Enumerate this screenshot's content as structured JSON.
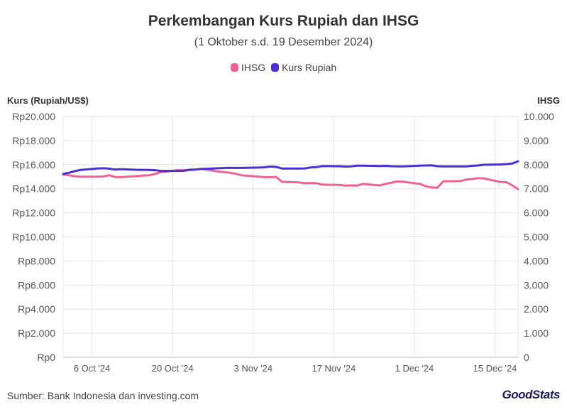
{
  "chart_data": {
    "type": "line",
    "title": "Perkembangan Kurs Rupiah dan IHSG",
    "subtitle": "(1 Oktober s.d. 19 Desember 2024)",
    "y_left_label": "Kurs (Rupiah/US$)",
    "y_right_label": "IHSG",
    "y_left_ticks": [
      "Rp0",
      "Rp2.000",
      "Rp4.000",
      "Rp6.000",
      "Rp8.000",
      "Rp10.000",
      "Rp12.000",
      "Rp14.000",
      "Rp16.000",
      "Rp18.000",
      "Rp20.000"
    ],
    "y_right_ticks": [
      "0",
      "1.000",
      "2.000",
      "3.000",
      "4.000",
      "5.000",
      "6.000",
      "7.000",
      "8.000",
      "9.000",
      "10.000"
    ],
    "ylim_left": [
      0,
      20000
    ],
    "ylim_right": [
      0,
      10000
    ],
    "x_ticks": [
      {
        "date": "2024-10-06",
        "label": "6 Oct '24"
      },
      {
        "date": "2024-10-20",
        "label": "20 Oct '24"
      },
      {
        "date": "2024-11-03",
        "label": "3 Nov '24"
      },
      {
        "date": "2024-11-17",
        "label": "17 Nov '24"
      },
      {
        "date": "2024-12-01",
        "label": "1 Dec '24"
      },
      {
        "date": "2024-12-15",
        "label": "15 Dec '24"
      }
    ],
    "xlim": [
      "2024-10-01",
      "2024-12-19"
    ],
    "legend_position": "top-center",
    "grid": true,
    "series": [
      {
        "name": "IHSG",
        "axis": "right",
        "color": "#f06292",
        "points": [
          [
            "2024-10-01",
            7590
          ],
          [
            "2024-10-02",
            7560
          ],
          [
            "2024-10-03",
            7520
          ],
          [
            "2024-10-04",
            7500
          ],
          [
            "2024-10-07",
            7500
          ],
          [
            "2024-10-08",
            7510
          ],
          [
            "2024-10-09",
            7560
          ],
          [
            "2024-10-10",
            7490
          ],
          [
            "2024-10-11",
            7480
          ],
          [
            "2024-10-14",
            7530
          ],
          [
            "2024-10-15",
            7550
          ],
          [
            "2024-10-16",
            7560
          ],
          [
            "2024-10-17",
            7620
          ],
          [
            "2024-10-18",
            7690
          ],
          [
            "2024-10-21",
            7770
          ],
          [
            "2024-10-22",
            7770
          ],
          [
            "2024-10-23",
            7780
          ],
          [
            "2024-10-24",
            7790
          ],
          [
            "2024-10-25",
            7830
          ],
          [
            "2024-10-28",
            7710
          ],
          [
            "2024-10-29",
            7690
          ],
          [
            "2024-10-30",
            7660
          ],
          [
            "2024-10-31",
            7620
          ],
          [
            "2024-11-01",
            7560
          ],
          [
            "2024-11-04",
            7500
          ],
          [
            "2024-11-05",
            7480
          ],
          [
            "2024-11-06",
            7480
          ],
          [
            "2024-11-07",
            7490
          ],
          [
            "2024-11-08",
            7290
          ],
          [
            "2024-11-11",
            7260
          ],
          [
            "2024-11-12",
            7230
          ],
          [
            "2024-11-13",
            7240
          ],
          [
            "2024-11-14",
            7230
          ],
          [
            "2024-11-15",
            7170
          ],
          [
            "2024-11-18",
            7160
          ],
          [
            "2024-11-19",
            7130
          ],
          [
            "2024-11-20",
            7140
          ],
          [
            "2024-11-21",
            7130
          ],
          [
            "2024-11-22",
            7200
          ],
          [
            "2024-11-25",
            7140
          ],
          [
            "2024-11-26",
            7200
          ],
          [
            "2024-11-28",
            7300
          ],
          [
            "2024-11-29",
            7290
          ],
          [
            "2024-12-02",
            7200
          ],
          [
            "2024-12-03",
            7100
          ],
          [
            "2024-12-04",
            7060
          ],
          [
            "2024-12-05",
            7040
          ],
          [
            "2024-12-06",
            7310
          ],
          [
            "2024-12-09",
            7320
          ],
          [
            "2024-12-10",
            7380
          ],
          [
            "2024-12-11",
            7400
          ],
          [
            "2024-12-12",
            7440
          ],
          [
            "2024-12-13",
            7430
          ],
          [
            "2024-12-16",
            7280
          ],
          [
            "2024-12-17",
            7270
          ],
          [
            "2024-12-18",
            7140
          ],
          [
            "2024-12-19",
            6980
          ]
        ]
      },
      {
        "name": "Kurs Rupiah",
        "axis": "left",
        "color": "#4a2fd3",
        "points": [
          [
            "2024-10-01",
            15230
          ],
          [
            "2024-10-02",
            15330
          ],
          [
            "2024-10-03",
            15460
          ],
          [
            "2024-10-04",
            15560
          ],
          [
            "2024-10-07",
            15690
          ],
          [
            "2024-10-08",
            15700
          ],
          [
            "2024-10-09",
            15670
          ],
          [
            "2024-10-10",
            15590
          ],
          [
            "2024-10-11",
            15630
          ],
          [
            "2024-10-14",
            15570
          ],
          [
            "2024-10-15",
            15570
          ],
          [
            "2024-10-16",
            15560
          ],
          [
            "2024-10-17",
            15540
          ],
          [
            "2024-10-18",
            15480
          ],
          [
            "2024-10-21",
            15480
          ],
          [
            "2024-10-22",
            15490
          ],
          [
            "2024-10-23",
            15580
          ],
          [
            "2024-10-24",
            15600
          ],
          [
            "2024-10-25",
            15640
          ],
          [
            "2024-10-28",
            15700
          ],
          [
            "2024-10-29",
            15720
          ],
          [
            "2024-10-30",
            15740
          ],
          [
            "2024-10-31",
            15730
          ],
          [
            "2024-11-01",
            15730
          ],
          [
            "2024-11-04",
            15760
          ],
          [
            "2024-11-05",
            15780
          ],
          [
            "2024-11-06",
            15840
          ],
          [
            "2024-11-07",
            15810
          ],
          [
            "2024-11-08",
            15680
          ],
          [
            "2024-11-11",
            15680
          ],
          [
            "2024-11-12",
            15690
          ],
          [
            "2024-11-13",
            15770
          ],
          [
            "2024-11-14",
            15800
          ],
          [
            "2024-11-15",
            15880
          ],
          [
            "2024-11-18",
            15870
          ],
          [
            "2024-11-19",
            15840
          ],
          [
            "2024-11-20",
            15860
          ],
          [
            "2024-11-21",
            15920
          ],
          [
            "2024-11-22",
            15910
          ],
          [
            "2024-11-25",
            15880
          ],
          [
            "2024-11-26",
            15900
          ],
          [
            "2024-11-27",
            15870
          ],
          [
            "2024-11-28",
            15860
          ],
          [
            "2024-11-29",
            15860
          ],
          [
            "2024-12-02",
            15910
          ],
          [
            "2024-12-03",
            15930
          ],
          [
            "2024-12-04",
            15940
          ],
          [
            "2024-12-05",
            15870
          ],
          [
            "2024-12-06",
            15850
          ],
          [
            "2024-12-09",
            15850
          ],
          [
            "2024-12-10",
            15860
          ],
          [
            "2024-12-11",
            15900
          ],
          [
            "2024-12-12",
            15930
          ],
          [
            "2024-12-13",
            15990
          ],
          [
            "2024-12-16",
            16020
          ],
          [
            "2024-12-17",
            16050
          ],
          [
            "2024-12-18",
            16100
          ],
          [
            "2024-12-19",
            16280
          ]
        ]
      }
    ]
  },
  "legend": [
    {
      "label": "IHSG",
      "color": "#f06292"
    },
    {
      "label": "Kurs Rupiah",
      "color": "#4a2fd3"
    }
  ],
  "source": "Sumber: Bank Indonesia dan investing.com",
  "logo_text": "GoodStats"
}
